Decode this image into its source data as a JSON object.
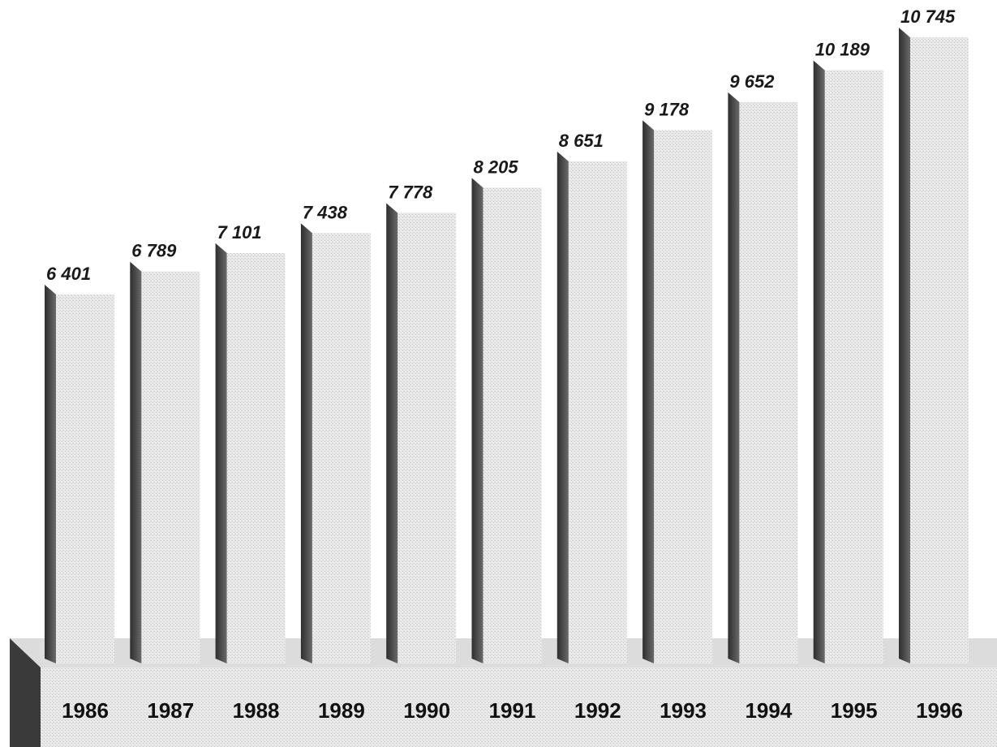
{
  "chart_data": {
    "type": "bar",
    "categories": [
      "1986",
      "1987",
      "1988",
      "1989",
      "1990",
      "1991",
      "1992",
      "1993",
      "1994",
      "1995",
      "1996"
    ],
    "values": [
      6401,
      6789,
      7101,
      7438,
      7778,
      8205,
      8651,
      9178,
      9652,
      10189,
      10745
    ],
    "value_labels": [
      "6 401",
      "6 789",
      "7 101",
      "7 438",
      "7 778",
      "8 205",
      "8 651",
      "9 178",
      "9 652",
      "10 189",
      "10 745"
    ],
    "title": "",
    "xlabel": "",
    "ylabel": "",
    "grid": false,
    "legend": "none",
    "colors": {
      "bar_face": "#e4e4e4",
      "bar_side": "#555555",
      "floor_top": "#e6e6e6",
      "floor_side": "#3a3a3a"
    }
  }
}
